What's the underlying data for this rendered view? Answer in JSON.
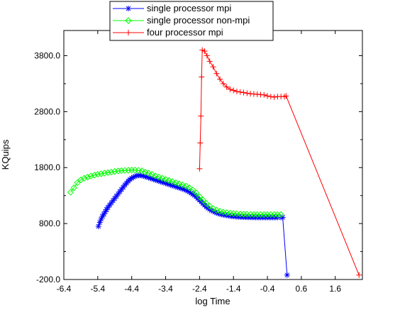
{
  "chart_data": {
    "type": "line",
    "xlabel": "log Time",
    "ylabel": "KQuips",
    "xlim": [
      -6.4,
      2.4
    ],
    "ylim": [
      -200,
      4250
    ],
    "xticks": [
      "-6.4",
      "-5.4",
      "-4.4",
      "-3.4",
      "-2.4",
      "-1.4",
      "-0.4",
      "0.6",
      "1.6"
    ],
    "yticks": [
      "-200.0",
      "800.0",
      "1800.0",
      "2800.0",
      "3800.0"
    ],
    "legend": "top",
    "series": [
      {
        "name": "single processor mpi",
        "color": "#0000ff",
        "marker": "asterisk",
        "points": [
          [
            -5.38,
            750
          ],
          [
            -5.34,
            820
          ],
          [
            -5.3,
            880
          ],
          [
            -5.26,
            930
          ],
          [
            -5.22,
            970
          ],
          [
            -5.18,
            1010
          ],
          [
            -5.14,
            1050
          ],
          [
            -5.1,
            1090
          ],
          [
            -5.05,
            1130
          ],
          [
            -5.0,
            1170
          ],
          [
            -4.95,
            1210
          ],
          [
            -4.9,
            1250
          ],
          [
            -4.85,
            1290
          ],
          [
            -4.8,
            1330
          ],
          [
            -4.75,
            1370
          ],
          [
            -4.7,
            1410
          ],
          [
            -4.65,
            1450
          ],
          [
            -4.6,
            1490
          ],
          [
            -4.55,
            1525
          ],
          [
            -4.5,
            1560
          ],
          [
            -4.45,
            1590
          ],
          [
            -4.4,
            1610
          ],
          [
            -4.35,
            1630
          ],
          [
            -4.3,
            1645
          ],
          [
            -4.25,
            1655
          ],
          [
            -4.2,
            1660
          ],
          [
            -4.15,
            1660
          ],
          [
            -4.1,
            1655
          ],
          [
            -4.05,
            1650
          ],
          [
            -4.0,
            1640
          ],
          [
            -3.95,
            1630
          ],
          [
            -3.9,
            1620
          ],
          [
            -3.85,
            1610
          ],
          [
            -3.8,
            1600
          ],
          [
            -3.75,
            1590
          ],
          [
            -3.7,
            1580
          ],
          [
            -3.65,
            1570
          ],
          [
            -3.6,
            1560
          ],
          [
            -3.55,
            1550
          ],
          [
            -3.5,
            1540
          ],
          [
            -3.45,
            1530
          ],
          [
            -3.4,
            1520
          ],
          [
            -3.35,
            1510
          ],
          [
            -3.3,
            1500
          ],
          [
            -3.25,
            1490
          ],
          [
            -3.2,
            1480
          ],
          [
            -3.15,
            1470
          ],
          [
            -3.1,
            1460
          ],
          [
            -3.05,
            1450
          ],
          [
            -3.0,
            1440
          ],
          [
            -2.95,
            1430
          ],
          [
            -2.9,
            1420
          ],
          [
            -2.85,
            1410
          ],
          [
            -2.8,
            1395
          ],
          [
            -2.75,
            1380
          ],
          [
            -2.7,
            1365
          ],
          [
            -2.65,
            1345
          ],
          [
            -2.6,
            1325
          ],
          [
            -2.55,
            1305
          ],
          [
            -2.5,
            1280
          ],
          [
            -2.45,
            1250
          ],
          [
            -2.4,
            1220
          ],
          [
            -2.35,
            1190
          ],
          [
            -2.3,
            1160
          ],
          [
            -2.25,
            1130
          ],
          [
            -2.2,
            1100
          ],
          [
            -2.15,
            1075
          ],
          [
            -2.1,
            1055
          ],
          [
            -2.05,
            1035
          ],
          [
            -2.0,
            1020
          ],
          [
            -1.95,
            1005
          ],
          [
            -1.9,
            990
          ],
          [
            -1.85,
            980
          ],
          [
            -1.8,
            970
          ],
          [
            -1.75,
            965
          ],
          [
            -1.7,
            955
          ],
          [
            -1.65,
            950
          ],
          [
            -1.6,
            945
          ],
          [
            -1.55,
            940
          ],
          [
            -1.5,
            935
          ],
          [
            -1.45,
            930
          ],
          [
            -1.4,
            928
          ],
          [
            -1.35,
            925
          ],
          [
            -1.3,
            922
          ],
          [
            -1.25,
            920
          ],
          [
            -1.2,
            918
          ],
          [
            -1.15,
            916
          ],
          [
            -1.1,
            915
          ],
          [
            -1.05,
            914
          ],
          [
            -1.0,
            913
          ],
          [
            -0.95,
            912
          ],
          [
            -0.9,
            912
          ],
          [
            -0.85,
            911
          ],
          [
            -0.8,
            911
          ],
          [
            -0.75,
            910
          ],
          [
            -0.7,
            910
          ],
          [
            -0.65,
            910
          ],
          [
            -0.6,
            910
          ],
          [
            -0.55,
            910
          ],
          [
            -0.5,
            910
          ],
          [
            -0.45,
            910
          ],
          [
            -0.4,
            910
          ],
          [
            -0.35,
            910
          ],
          [
            -0.3,
            910
          ],
          [
            -0.25,
            910
          ],
          [
            -0.2,
            910
          ],
          [
            -0.15,
            910
          ],
          [
            -0.1,
            910
          ],
          [
            0.0,
            910
          ],
          [
            0.05,
            910
          ],
          [
            0.18,
            -120
          ]
        ]
      },
      {
        "name": "single processor non-mpi",
        "color": "#00ff00",
        "marker": "diamond",
        "points": [
          [
            -6.2,
            1360
          ],
          [
            -6.1,
            1440
          ],
          [
            -6.0,
            1530
          ],
          [
            -5.9,
            1580
          ],
          [
            -5.8,
            1610
          ],
          [
            -5.7,
            1630
          ],
          [
            -5.6,
            1650
          ],
          [
            -5.5,
            1665
          ],
          [
            -5.4,
            1680
          ],
          [
            -5.3,
            1690
          ],
          [
            -5.2,
            1700
          ],
          [
            -5.1,
            1710
          ],
          [
            -5.0,
            1720
          ],
          [
            -4.9,
            1730
          ],
          [
            -4.8,
            1740
          ],
          [
            -4.7,
            1745
          ],
          [
            -4.6,
            1750
          ],
          [
            -4.5,
            1752
          ],
          [
            -4.4,
            1755
          ],
          [
            -4.3,
            1755
          ],
          [
            -4.2,
            1750
          ],
          [
            -4.1,
            1740
          ],
          [
            -4.0,
            1720
          ],
          [
            -3.9,
            1700
          ],
          [
            -3.8,
            1680
          ],
          [
            -3.7,
            1650
          ],
          [
            -3.6,
            1630
          ],
          [
            -3.5,
            1610
          ],
          [
            -3.4,
            1590
          ],
          [
            -3.3,
            1570
          ],
          [
            -3.2,
            1550
          ],
          [
            -3.1,
            1530
          ],
          [
            -3.0,
            1510
          ],
          [
            -2.9,
            1490
          ],
          [
            -2.8,
            1470
          ],
          [
            -2.7,
            1440
          ],
          [
            -2.6,
            1400
          ],
          [
            -2.5,
            1350
          ],
          [
            -2.4,
            1280
          ],
          [
            -2.3,
            1220
          ],
          [
            -2.2,
            1160
          ],
          [
            -2.1,
            1110
          ],
          [
            -2.0,
            1070
          ],
          [
            -1.9,
            1040
          ],
          [
            -1.8,
            1020
          ],
          [
            -1.7,
            1005
          ],
          [
            -1.6,
            995
          ],
          [
            -1.5,
            985
          ],
          [
            -1.4,
            980
          ],
          [
            -1.3,
            975
          ],
          [
            -1.2,
            970
          ],
          [
            -1.1,
            968
          ],
          [
            -1.0,
            966
          ],
          [
            -0.9,
            964
          ],
          [
            -0.8,
            962
          ],
          [
            -0.7,
            960
          ],
          [
            -0.6,
            960
          ],
          [
            -0.5,
            960
          ],
          [
            -0.4,
            960
          ],
          [
            -0.3,
            960
          ],
          [
            -0.2,
            960
          ],
          [
            -0.1,
            960
          ],
          [
            0.0,
            960
          ]
        ]
      },
      {
        "name": "four processor mpi",
        "color": "#ff0000",
        "marker": "plus",
        "points": [
          [
            -2.4,
            1780
          ],
          [
            -2.38,
            2240
          ],
          [
            -2.36,
            2720
          ],
          [
            -2.34,
            3420
          ],
          [
            -2.32,
            3900
          ],
          [
            -2.25,
            3880
          ],
          [
            -2.18,
            3800
          ],
          [
            -2.1,
            3700
          ],
          [
            -2.0,
            3600
          ],
          [
            -1.9,
            3480
          ],
          [
            -1.8,
            3380
          ],
          [
            -1.7,
            3300
          ],
          [
            -1.6,
            3240
          ],
          [
            -1.5,
            3200
          ],
          [
            -1.4,
            3180
          ],
          [
            -1.3,
            3160
          ],
          [
            -1.2,
            3150
          ],
          [
            -1.1,
            3140
          ],
          [
            -1.0,
            3130
          ],
          [
            -0.9,
            3120
          ],
          [
            -0.8,
            3115
          ],
          [
            -0.7,
            3110
          ],
          [
            -0.6,
            3105
          ],
          [
            -0.5,
            3100
          ],
          [
            -0.4,
            3080
          ],
          [
            -0.3,
            3070
          ],
          [
            -0.2,
            3060
          ],
          [
            -0.1,
            3070
          ],
          [
            0.0,
            3070
          ],
          [
            0.1,
            3070
          ],
          [
            0.15,
            3080
          ],
          [
            2.3,
            -120
          ]
        ]
      }
    ]
  }
}
